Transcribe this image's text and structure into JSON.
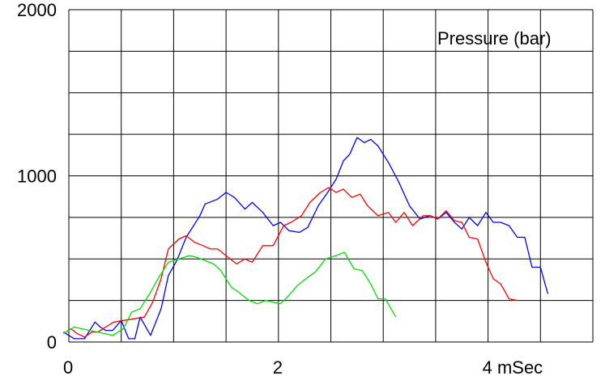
{
  "chart_data": {
    "type": "line",
    "title": "",
    "inner_label": "Pressure (bar)",
    "xlabel": "",
    "ylabel": "",
    "xlim": [
      0,
      5
    ],
    "ylim": [
      0,
      2000
    ],
    "x_tick_labels": [
      {
        "value": 0,
        "label": "0"
      },
      {
        "value": 2,
        "label": "2"
      },
      {
        "value": 4,
        "label": "4 mSec"
      }
    ],
    "y_tick_labels": [
      {
        "value": 0,
        "label": "0"
      },
      {
        "value": 1000,
        "label": "1000"
      },
      {
        "value": 2000,
        "label": "2000"
      }
    ],
    "grid": true,
    "series": [
      {
        "color": "#0000ff",
        "x": [
          -0.05,
          0.05,
          0.15,
          0.25,
          0.3,
          0.35,
          0.42,
          0.5,
          0.57,
          0.63,
          0.68,
          0.78,
          0.88,
          0.95,
          1.03,
          1.12,
          1.25,
          1.3,
          1.42,
          1.5,
          1.58,
          1.68,
          1.75,
          1.85,
          1.95,
          2.02,
          2.1,
          2.2,
          2.28,
          2.38,
          2.47,
          2.55,
          2.62,
          2.68,
          2.75,
          2.82,
          2.88,
          2.95,
          3.05,
          3.15,
          3.25,
          3.35,
          3.45,
          3.52,
          3.6,
          3.68,
          3.75,
          3.82,
          3.9,
          3.98,
          4.05,
          4.12,
          4.2,
          4.28,
          4.35,
          4.42,
          4.5,
          4.57
        ],
        "values": [
          60,
          20,
          20,
          120,
          90,
          70,
          70,
          130,
          20,
          20,
          150,
          40,
          200,
          400,
          490,
          630,
          760,
          830,
          860,
          900,
          870,
          800,
          840,
          780,
          700,
          720,
          670,
          660,
          690,
          820,
          900,
          980,
          1090,
          1130,
          1230,
          1200,
          1220,
          1180,
          1080,
          960,
          820,
          740,
          760,
          740,
          780,
          720,
          680,
          750,
          700,
          780,
          720,
          720,
          700,
          630,
          630,
          450,
          450,
          290
        ]
      },
      {
        "color": "#ff0000",
        "x": [
          -0.05,
          0.02,
          0.08,
          0.15,
          0.22,
          0.28,
          0.35,
          0.43,
          0.72,
          0.8,
          0.88,
          0.95,
          1.05,
          1.12,
          1.2,
          1.28,
          1.35,
          1.42,
          1.5,
          1.6,
          1.68,
          1.75,
          1.85,
          1.95,
          2.05,
          2.12,
          2.22,
          2.3,
          2.4,
          2.48,
          2.55,
          2.62,
          2.7,
          2.78,
          2.85,
          2.95,
          3.05,
          3.12,
          3.2,
          3.28,
          3.38,
          3.45,
          3.52,
          3.6,
          3.68,
          3.75,
          3.82,
          3.9,
          3.98,
          4.05,
          4.12,
          4.2,
          4.28
        ],
        "values": [
          50,
          80,
          50,
          30,
          60,
          60,
          90,
          120,
          150,
          240,
          380,
          560,
          620,
          640,
          600,
          580,
          560,
          560,
          520,
          470,
          500,
          480,
          580,
          580,
          700,
          720,
          760,
          840,
          900,
          930,
          900,
          920,
          870,
          890,
          820,
          760,
          780,
          720,
          780,
          700,
          760,
          760,
          740,
          790,
          730,
          720,
          630,
          620,
          480,
          380,
          350,
          260,
          250
        ]
      },
      {
        "color": "#00e000",
        "x": [
          -0.05,
          0.05,
          0.42,
          0.52,
          0.6,
          0.68,
          0.78,
          0.85,
          0.95,
          1.05,
          1.15,
          1.22,
          1.3,
          1.38,
          1.45,
          1.55,
          1.62,
          1.72,
          1.8,
          1.88,
          1.95,
          2.02,
          2.1,
          2.18,
          2.28,
          2.35,
          2.45,
          2.55,
          2.63,
          2.72,
          2.8,
          2.88,
          2.95,
          3.02,
          3.12
        ],
        "values": [
          50,
          90,
          40,
          80,
          180,
          200,
          300,
          380,
          480,
          500,
          520,
          510,
          490,
          470,
          430,
          330,
          300,
          250,
          230,
          250,
          240,
          230,
          280,
          340,
          390,
          420,
          500,
          520,
          540,
          440,
          430,
          350,
          260,
          260,
          150
        ]
      }
    ]
  }
}
